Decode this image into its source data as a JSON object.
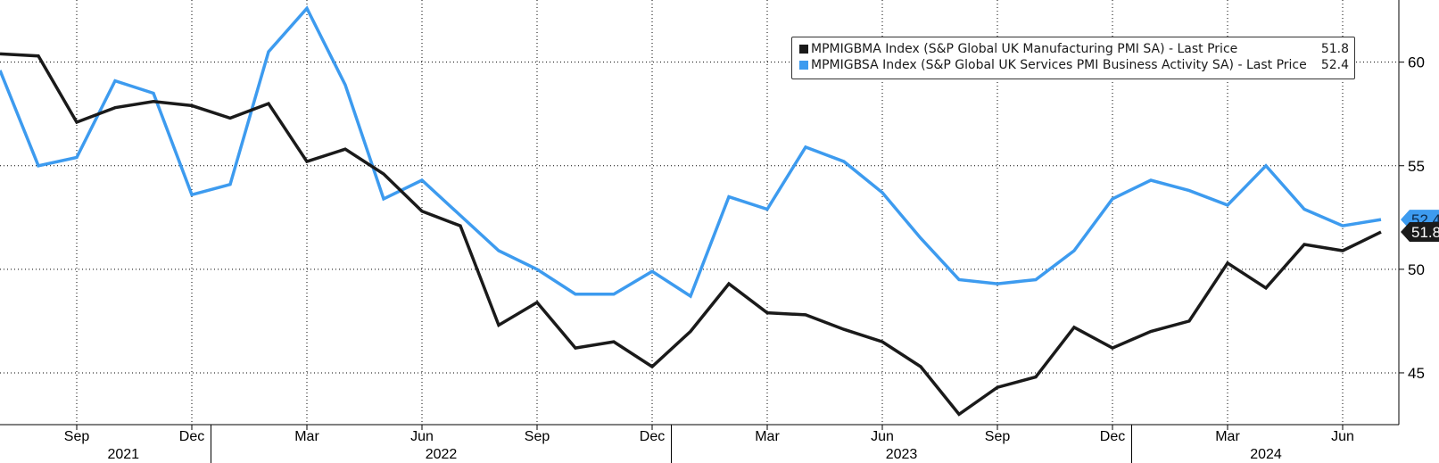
{
  "chart_data": {
    "type": "line",
    "x": [
      "2021-07",
      "2021-08",
      "2021-09",
      "2021-10",
      "2021-11",
      "2021-12",
      "2022-01",
      "2022-02",
      "2022-03",
      "2022-04",
      "2022-05",
      "2022-06",
      "2022-07",
      "2022-08",
      "2022-09",
      "2022-10",
      "2022-11",
      "2022-12",
      "2023-01",
      "2023-02",
      "2023-03",
      "2023-04",
      "2023-05",
      "2023-06",
      "2023-07",
      "2023-08",
      "2023-09",
      "2023-10",
      "2023-11",
      "2023-12",
      "2024-01",
      "2024-02",
      "2024-03",
      "2024-04",
      "2024-05",
      "2024-06",
      "2024-07"
    ],
    "series": [
      {
        "name": "MPMIGBMA Index (S&P Global UK Manufacturing PMI SA) - Last Price",
        "last_value": "51.8",
        "color": "#1a1a1a",
        "values": [
          60.4,
          60.3,
          57.1,
          57.8,
          58.1,
          57.9,
          57.3,
          58.0,
          55.2,
          55.8,
          54.6,
          52.8,
          52.1,
          47.3,
          48.4,
          46.2,
          46.5,
          45.3,
          47.0,
          49.3,
          47.9,
          47.8,
          47.1,
          46.5,
          45.3,
          43.0,
          44.3,
          44.8,
          47.2,
          46.2,
          47.0,
          47.5,
          50.3,
          49.1,
          51.2,
          50.9,
          51.8
        ]
      },
      {
        "name": "MPMIGBSA Index (S&P Global UK Services PMI Business Activity SA) - Last Price",
        "last_value": "52.4",
        "color": "#3d9bef",
        "values": [
          59.6,
          55.0,
          55.4,
          59.1,
          58.5,
          53.6,
          54.1,
          60.5,
          62.6,
          58.9,
          53.4,
          54.3,
          52.6,
          50.9,
          50.0,
          48.8,
          48.8,
          49.9,
          48.7,
          53.5,
          52.9,
          55.9,
          55.2,
          53.7,
          51.5,
          49.5,
          49.3,
          49.5,
          50.9,
          53.4,
          54.3,
          53.8,
          53.1,
          55.0,
          52.9,
          52.1,
          52.4
        ]
      }
    ],
    "x_ticks": [
      "Sep",
      "Dec",
      "Mar",
      "Jun",
      "Sep",
      "Dec",
      "Mar",
      "Jun",
      "Sep",
      "Dec",
      "Mar",
      "Jun"
    ],
    "x_years": [
      "2021",
      "2022",
      "2023",
      "2024"
    ],
    "y_ticks": [
      "45",
      "50",
      "55",
      "60"
    ],
    "ylim": [
      42.5,
      63.0
    ],
    "y_axis_side": "right",
    "grid": true,
    "legend_position": "top-right"
  }
}
